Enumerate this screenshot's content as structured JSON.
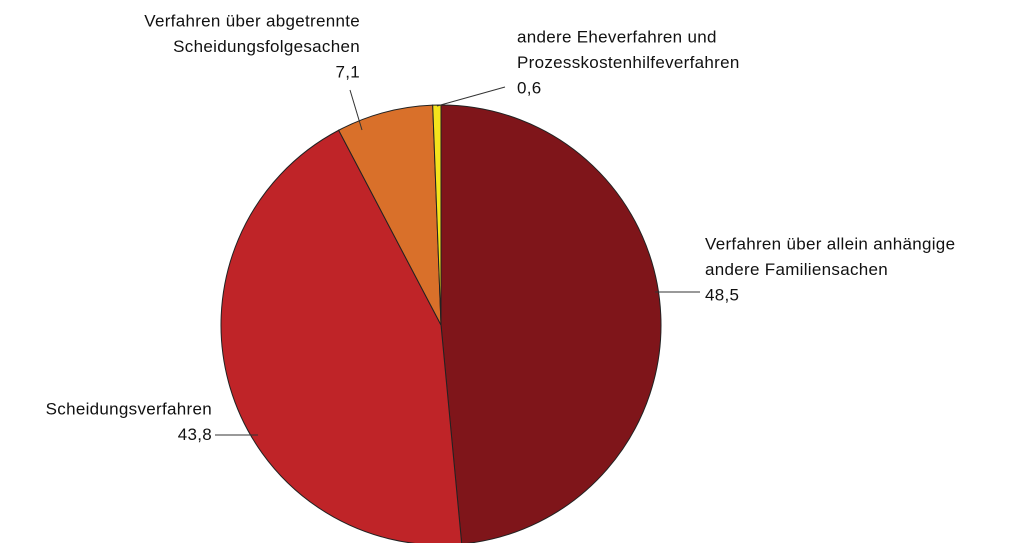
{
  "chart_data": {
    "type": "pie",
    "categories": [
      [
        "Verfahren über allein anhängige",
        "andere Familiensachen"
      ],
      [
        "Scheidungsverfahren"
      ],
      [
        "Verfahren über abgetrennte",
        "Scheidungsfolgesachen"
      ],
      [
        "andere Eheverfahren und",
        "Prozesskostenhilfeverfahren"
      ]
    ],
    "values": [
      48.5,
      43.8,
      7.1,
      0.6
    ],
    "value_labels": [
      "48,5",
      "43,8",
      "7,1",
      "0,6"
    ],
    "colors": [
      "#7f151a",
      "#bf2428",
      "#d9702a",
      "#f4e31c"
    ]
  }
}
